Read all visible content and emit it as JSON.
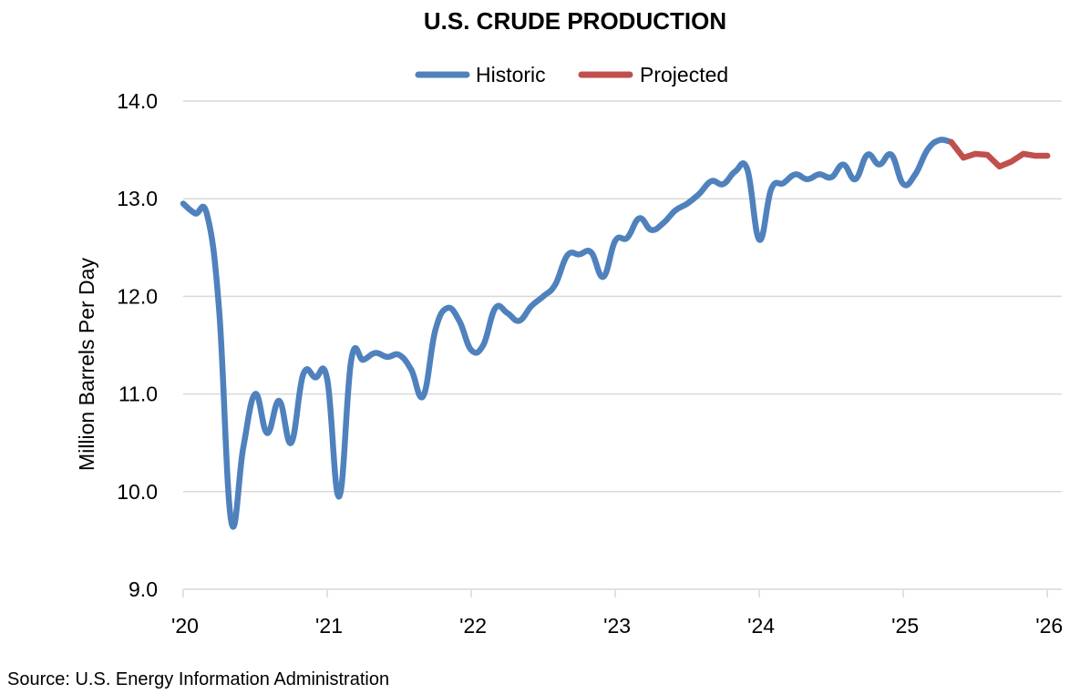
{
  "chart_data": {
    "type": "line",
    "title": "U.S. CRUDE PRODUCTION",
    "ylabel": "Million Barrels Per Day",
    "xlabel": "",
    "ylim": [
      9.0,
      14.0
    ],
    "yticks": [
      "9.0",
      "10.0",
      "11.0",
      "12.0",
      "13.0",
      "14.0"
    ],
    "ytick_values": [
      9.0,
      10.0,
      11.0,
      12.0,
      13.0,
      14.0
    ],
    "xticks": [
      "'20",
      "'21",
      "'22",
      "'23",
      "'24",
      "'25",
      "'26"
    ],
    "xtick_values": [
      2020,
      2021,
      2022,
      2023,
      2024,
      2025,
      2026
    ],
    "xlim": [
      2020,
      2026.1
    ],
    "grid": true,
    "legend_placement": "top-center",
    "series": [
      {
        "name": "Historic",
        "color": "#4f81bd",
        "x": [
          2020.0,
          2020.083,
          2020.167,
          2020.25,
          2020.333,
          2020.417,
          2020.5,
          2020.583,
          2020.667,
          2020.75,
          2020.833,
          2020.917,
          2021.0,
          2021.083,
          2021.167,
          2021.25,
          2021.333,
          2021.417,
          2021.5,
          2021.583,
          2021.667,
          2021.75,
          2021.833,
          2021.917,
          2022.0,
          2022.083,
          2022.167,
          2022.25,
          2022.333,
          2022.417,
          2022.5,
          2022.583,
          2022.667,
          2022.75,
          2022.833,
          2022.917,
          2023.0,
          2023.083,
          2023.167,
          2023.25,
          2023.333,
          2023.417,
          2023.5,
          2023.583,
          2023.667,
          2023.75,
          2023.833,
          2023.917,
          2024.0,
          2024.083,
          2024.167,
          2024.25,
          2024.333,
          2024.417,
          2024.5,
          2024.583,
          2024.667,
          2024.75,
          2024.833,
          2024.917,
          2025.0,
          2025.083,
          2025.167,
          2025.25,
          2025.333
        ],
        "values": [
          12.95,
          12.85,
          12.83,
          11.85,
          9.7,
          10.45,
          11.0,
          10.6,
          10.93,
          10.5,
          11.2,
          11.17,
          11.15,
          9.95,
          11.35,
          11.35,
          11.42,
          11.38,
          11.4,
          11.25,
          10.98,
          11.65,
          11.88,
          11.75,
          11.45,
          11.5,
          11.88,
          11.83,
          11.75,
          11.9,
          12.0,
          12.12,
          12.42,
          12.43,
          12.45,
          12.2,
          12.57,
          12.6,
          12.8,
          12.68,
          12.75,
          12.88,
          12.95,
          13.05,
          13.18,
          13.15,
          13.28,
          13.3,
          12.58,
          13.1,
          13.16,
          13.25,
          13.2,
          13.25,
          13.22,
          13.35,
          13.2,
          13.45,
          13.35,
          13.45,
          13.15,
          13.25,
          13.5,
          13.6,
          13.58
        ]
      },
      {
        "name": "Projected",
        "color": "#c0504d",
        "x": [
          2025.333,
          2025.417,
          2025.5,
          2025.583,
          2025.667,
          2025.75,
          2025.833,
          2025.917,
          2026.0
        ],
        "values": [
          13.58,
          13.42,
          13.46,
          13.45,
          13.33,
          13.38,
          13.46,
          13.44,
          13.44
        ]
      }
    ]
  },
  "source": "Source: U.S. Energy Information Administration"
}
